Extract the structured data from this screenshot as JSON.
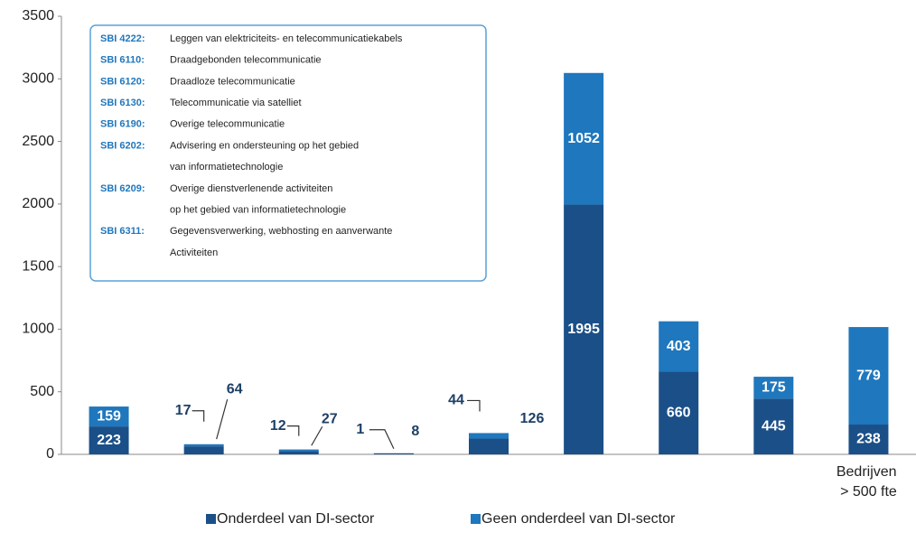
{
  "chart_data": {
    "type": "stacked_bar",
    "categories": [
      "SBI 4222",
      "SBI 6110",
      "SBI 6120",
      "SBI 6130",
      "SBI 6190",
      "SBI 6202",
      "SBI 6209",
      "SBI 6311",
      "Bedrijven > 500 fte"
    ],
    "series": [
      {
        "name": "Onderdeel van DI-sector",
        "color": "#1b4f88",
        "values": [
          223,
          64,
          27,
          8,
          126,
          1995,
          660,
          445,
          238
        ]
      },
      {
        "name": "Geen onderdeel van DI-sector",
        "color": "#1f77bd",
        "values": [
          159,
          17,
          12,
          1,
          44,
          1052,
          403,
          175,
          779
        ]
      }
    ],
    "ylim": [
      0,
      3500
    ],
    "yticks": [
      0,
      500,
      1000,
      1500,
      2000,
      2500,
      3000,
      3500
    ],
    "grid": false,
    "legend": "bottom",
    "legend_box": [
      {
        "code": "SBI 4222:",
        "lines": [
          "Leggen van elektriciteits- en telecommunicatiekabels"
        ]
      },
      {
        "code": "SBI 6110:",
        "lines": [
          "Draadgebonden telecommunicatie"
        ]
      },
      {
        "code": "SBI 6120:",
        "lines": [
          "Draadloze telecommunicatie"
        ]
      },
      {
        "code": "SBI 6130:",
        "lines": [
          "Telecommunicatie via satelliet"
        ]
      },
      {
        "code": "SBI 6190:",
        "lines": [
          "Overige telecommunicatie"
        ]
      },
      {
        "code": "SBI 6202:",
        "lines": [
          "Advisering en ondersteuning op het gebied",
          "van informatietechnologie"
        ]
      },
      {
        "code": "SBI 6209:",
        "lines": [
          "Overige dienstverlenende activiteiten",
          "op het gebied van informatietechnologie"
        ]
      },
      {
        "code": "SBI 6311:",
        "lines": [
          "Gegevensverwerking, webhosting en aanverwante",
          "Activiteiten"
        ]
      }
    ]
  }
}
